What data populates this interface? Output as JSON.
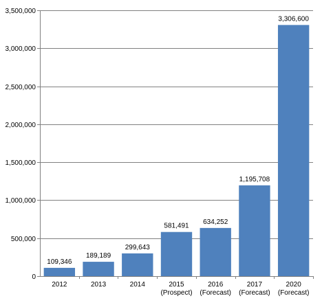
{
  "chart_data": {
    "type": "bar",
    "categories": [
      [
        "2012"
      ],
      [
        "2013"
      ],
      [
        "2014"
      ],
      [
        "2015",
        "(Prospect)"
      ],
      [
        "2016",
        "(Forecast)"
      ],
      [
        "2017",
        "(Forecast)"
      ],
      [
        "2020",
        "(Forecast)"
      ]
    ],
    "values": [
      109346,
      189189,
      299643,
      581491,
      634252,
      1195708,
      3306600
    ],
    "data_labels": [
      "109,346",
      "189,189",
      "299,643",
      "581,491",
      "634,252",
      "1,195,708",
      "3,306,600"
    ],
    "y_ticks": [
      0,
      500000,
      1000000,
      1500000,
      2000000,
      2500000,
      3000000,
      3500000
    ],
    "y_tick_labels": [
      "0",
      "500,000",
      "1,000,000",
      "1,500,000",
      "2,000,000",
      "2,500,000",
      "3,000,000",
      "3,500,000"
    ],
    "ylim": [
      0,
      3500000
    ],
    "grid": true,
    "legend": "none",
    "bar_color": "#4f81bd",
    "grid_color": "#808080"
  }
}
